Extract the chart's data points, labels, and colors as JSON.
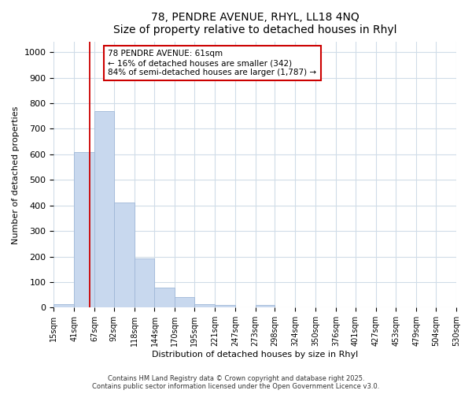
{
  "title_line1": "78, PENDRE AVENUE, RHYL, LL18 4NQ",
  "title_line2": "Size of property relative to detached houses in Rhyl",
  "xlabel": "Distribution of detached houses by size in Rhyl",
  "ylabel": "Number of detached properties",
  "bin_edges": [
    15,
    41,
    67,
    92,
    118,
    144,
    170,
    195,
    221,
    247,
    273,
    298,
    324,
    350,
    376,
    401,
    427,
    453,
    479,
    504,
    530
  ],
  "bar_heights": [
    14,
    608,
    770,
    413,
    192,
    77,
    40,
    14,
    10,
    0,
    10,
    0,
    0,
    0,
    0,
    0,
    0,
    0,
    0,
    0
  ],
  "bar_color": "#c8d8ee",
  "bar_edge_color": "#a0b8d8",
  "property_size": 61,
  "vline_color": "#cc0000",
  "annotation_line1": "78 PENDRE AVENUE: 61sqm",
  "annotation_line2": "← 16% of detached houses are smaller (342)",
  "annotation_line3": "84% of semi-detached houses are larger (1,787) →",
  "annotation_box_color": "#cc0000",
  "annotation_text_color": "#000000",
  "ylim": [
    0,
    1040
  ],
  "yticks": [
    0,
    100,
    200,
    300,
    400,
    500,
    600,
    700,
    800,
    900,
    1000
  ],
  "background_color": "#ffffff",
  "grid_color": "#d0dce8",
  "footnote_line1": "Contains HM Land Registry data © Crown copyright and database right 2025.",
  "footnote_line2": "Contains public sector information licensed under the Open Government Licence v3.0.",
  "title_fontsize": 10,
  "axis_label_fontsize": 8,
  "tick_fontsize": 7,
  "annot_fontsize": 7.5
}
